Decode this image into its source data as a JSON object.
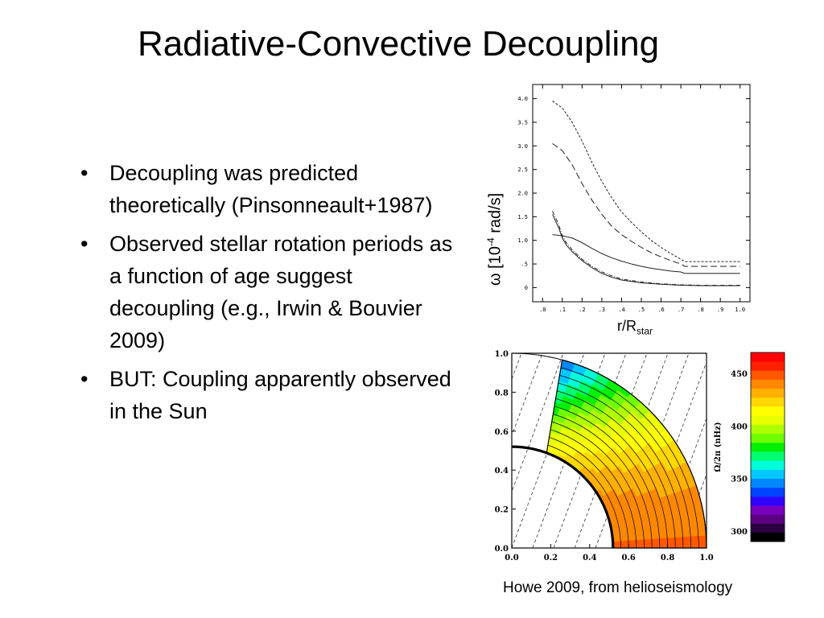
{
  "slide": {
    "title": "Radiative-Convective Decoupling",
    "bullets": [
      {
        "text": "Decoupling was predicted theoretically (Pinsonneault+1987)"
      },
      {
        "text": "Observed stellar rotation periods as a function of age suggest decoupling (e.g., Irwin & Bouvier 2009)"
      },
      {
        "text": "BUT: Coupling apparently observed in the Sun"
      }
    ],
    "credit": "Howe 2009, from helioseismology"
  },
  "chart_data": [
    {
      "type": "line",
      "ylabel": {
        "symbol": "ω",
        "pre": " [10",
        "sup": "-4",
        "post": " rad/s]"
      },
      "xlabel": {
        "main": "r/R",
        "sub": "star"
      },
      "x_ticks": [
        ".0",
        ".1",
        ".2",
        ".3",
        ".4",
        ".5",
        ".6",
        ".7",
        ".8",
        ".9",
        "1.0"
      ],
      "y_ticks": [
        "0",
        ".5",
        "1.0",
        "1.5",
        "2.0",
        "2.5",
        "3.0",
        "3.5",
        "4.0"
      ],
      "xlim": [
        -0.05,
        1.05
      ],
      "ylim": [
        -0.3,
        4.3
      ],
      "series": [
        {
          "style": "short-dash",
          "x": [
            0.05,
            0.1,
            0.15,
            0.2,
            0.25,
            0.3,
            0.35,
            0.4,
            0.45,
            0.5,
            0.55,
            0.6,
            0.65,
            0.7,
            0.72,
            0.8,
            0.9,
            1.0
          ],
          "y": [
            3.95,
            3.8,
            3.5,
            3.1,
            2.65,
            2.25,
            1.9,
            1.6,
            1.38,
            1.18,
            1.0,
            0.85,
            0.72,
            0.6,
            0.55,
            0.55,
            0.55,
            0.55
          ]
        },
        {
          "style": "long-dash",
          "x": [
            0.05,
            0.1,
            0.15,
            0.2,
            0.25,
            0.3,
            0.35,
            0.4,
            0.45,
            0.5,
            0.55,
            0.6,
            0.65,
            0.7,
            0.72,
            0.8,
            0.9,
            1.0
          ],
          "y": [
            3.05,
            2.9,
            2.6,
            2.2,
            1.85,
            1.55,
            1.3,
            1.12,
            0.98,
            0.85,
            0.74,
            0.65,
            0.57,
            0.5,
            0.45,
            0.45,
            0.45,
            0.45
          ]
        },
        {
          "style": "solid",
          "x": [
            0.05,
            0.1,
            0.15,
            0.2,
            0.25,
            0.3,
            0.35,
            0.4,
            0.45,
            0.5,
            0.55,
            0.6,
            0.65,
            0.7,
            0.72,
            0.8,
            0.9,
            1.0
          ],
          "y": [
            1.12,
            1.1,
            1.05,
            0.95,
            0.83,
            0.72,
            0.63,
            0.56,
            0.5,
            0.45,
            0.41,
            0.38,
            0.35,
            0.33,
            0.3,
            0.3,
            0.3,
            0.3
          ]
        },
        {
          "style": "dash-dot",
          "x": [
            0.05,
            0.08,
            0.1,
            0.12,
            0.15,
            0.2,
            0.25,
            0.3,
            0.35,
            0.4,
            0.5,
            0.6,
            0.7,
            0.8,
            0.9,
            1.0
          ],
          "y": [
            1.62,
            1.35,
            1.1,
            0.95,
            0.8,
            0.6,
            0.45,
            0.33,
            0.25,
            0.18,
            0.12,
            0.08,
            0.06,
            0.05,
            0.05,
            0.05
          ]
        },
        {
          "style": "solid",
          "x": [
            0.05,
            0.08,
            0.1,
            0.12,
            0.15,
            0.2,
            0.25,
            0.3,
            0.35,
            0.4,
            0.5,
            0.6,
            0.7,
            0.8,
            0.9,
            1.0
          ],
          "y": [
            1.55,
            1.28,
            1.05,
            0.9,
            0.76,
            0.57,
            0.42,
            0.3,
            0.22,
            0.16,
            0.1,
            0.07,
            0.05,
            0.04,
            0.04,
            0.04
          ]
        }
      ]
    },
    {
      "type": "heatmap",
      "x_ticks": [
        "0.0",
        "0.2",
        "0.4",
        "0.6",
        "0.8",
        "1.0"
      ],
      "y_ticks": [
        "0.0",
        "0.2",
        "0.4",
        "0.6",
        "0.8",
        "1.0"
      ],
      "xlim": [
        0,
        1
      ],
      "ylim": [
        0,
        1
      ],
      "colorbar_label": "Ω/2π (nHz)",
      "colorbar_ticks": [
        "300",
        "350",
        "400",
        "450"
      ],
      "colorbar_range": [
        290,
        470
      ],
      "colorbar_colors": [
        "#000000",
        "#2a0040",
        "#5a0080",
        "#7a00c0",
        "#3000ff",
        "#0044ff",
        "#0088ff",
        "#00c8ff",
        "#00ffd8",
        "#00ff70",
        "#00f000",
        "#70ff00",
        "#b0ff00",
        "#e8ff00",
        "#ffff00",
        "#ffd800",
        "#ffb000",
        "#ff8800",
        "#ff5800",
        "#ff2000",
        "#ff0000"
      ]
    }
  ]
}
